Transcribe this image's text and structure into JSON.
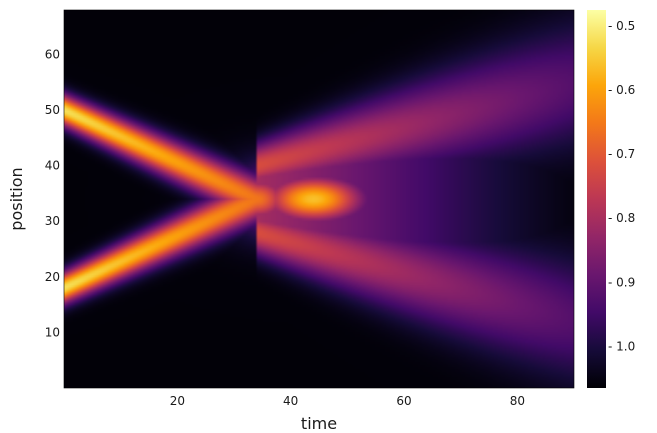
{
  "chart_data": {
    "type": "heatmap",
    "title": "",
    "xlabel": "time",
    "ylabel": "position",
    "xlim": [
      0,
      90
    ],
    "ylim": [
      0,
      68
    ],
    "x_ticks": [
      20,
      40,
      60,
      80
    ],
    "y_ticks": [
      10,
      20,
      30,
      40,
      50,
      60
    ],
    "x_tick_labels": [
      "20",
      "40",
      "60",
      "80"
    ],
    "y_tick_labels": [
      "10",
      "20",
      "30",
      "40",
      "50",
      "60"
    ],
    "colorbar": {
      "colormap": "inferno",
      "range": [
        -1.065,
        -0.475
      ],
      "ticks": [
        -0.5,
        -0.6,
        -0.7,
        -0.8,
        -0.9,
        -1.0
      ],
      "tick_labels": [
        "- 0.5",
        "- 0.6",
        "- 0.7",
        "- 0.8",
        "- 0.9",
        "- 1.0"
      ]
    },
    "background_value": -1.06,
    "features": [
      {
        "kind": "beam",
        "from_time": 0,
        "to_time": 34,
        "position_start": 50,
        "position_end": 34,
        "peak_value": -0.52
      },
      {
        "kind": "beam",
        "from_time": 0,
        "to_time": 34,
        "position_start": 18,
        "position_end": 34,
        "peak_value": -0.52
      },
      {
        "kind": "hotspot",
        "time": 44,
        "position": 34,
        "peak_value": -0.56
      },
      {
        "kind": "fan",
        "from_time": 44,
        "to_time": 90,
        "position_center": 34,
        "upper_edge_at_end": 55,
        "lower_edge_at_end": 12,
        "edge_value_at_end": -0.92
      }
    ],
    "grid": false,
    "legend": "none"
  }
}
